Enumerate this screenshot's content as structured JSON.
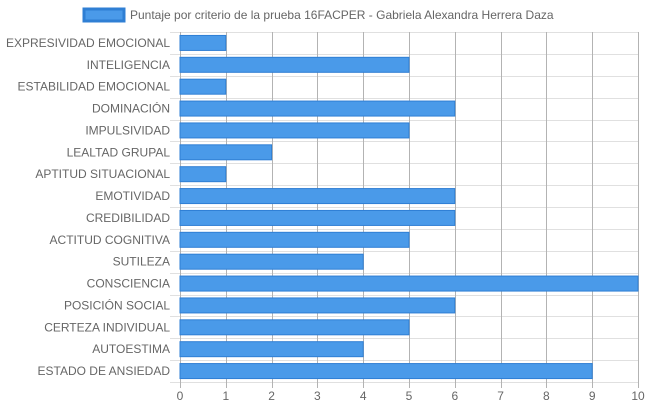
{
  "chart_data": {
    "type": "bar",
    "orientation": "horizontal",
    "categories": [
      "EXPRESIVIDAD EMOCIONAL",
      "INTELIGENCIA",
      "ESTABILIDAD EMOCIONAL",
      "DOMINACIÓN",
      "IMPULSIVIDAD",
      "LEALTAD GRUPAL",
      "APTITUD SITUACIONAL",
      "EMOTIVIDAD",
      "CREDIBILIDAD",
      "ACTITUD COGNITIVA",
      "SUTILEZA",
      "CONSCIENCIA",
      "POSICIÓN SOCIAL",
      "CERTEZA INDIVIDUAL",
      "AUTOESTIMA",
      "ESTADO DE ANSIEDAD"
    ],
    "series": [
      {
        "name": "Puntaje por criterio de la prueba 16FACPER - Gabriela Alexandra Herrera Daza",
        "values": [
          1,
          5,
          1,
          6,
          5,
          2,
          1,
          6,
          6,
          5,
          4,
          10,
          6,
          5,
          4,
          9
        ]
      }
    ],
    "xlim": [
      0,
      10
    ],
    "xticks": [
      "0",
      "1",
      "2",
      "3",
      "4",
      "5",
      "6",
      "7",
      "8",
      "9",
      "10"
    ],
    "grid": true,
    "legend_position": "top-center",
    "colors": {
      "bar_fill": "#4a9ae9",
      "bar_stroke": "#2f7fd4",
      "grid": "#e0e0e0",
      "grid_major": "#b3b3b3",
      "text": "#666666"
    }
  }
}
